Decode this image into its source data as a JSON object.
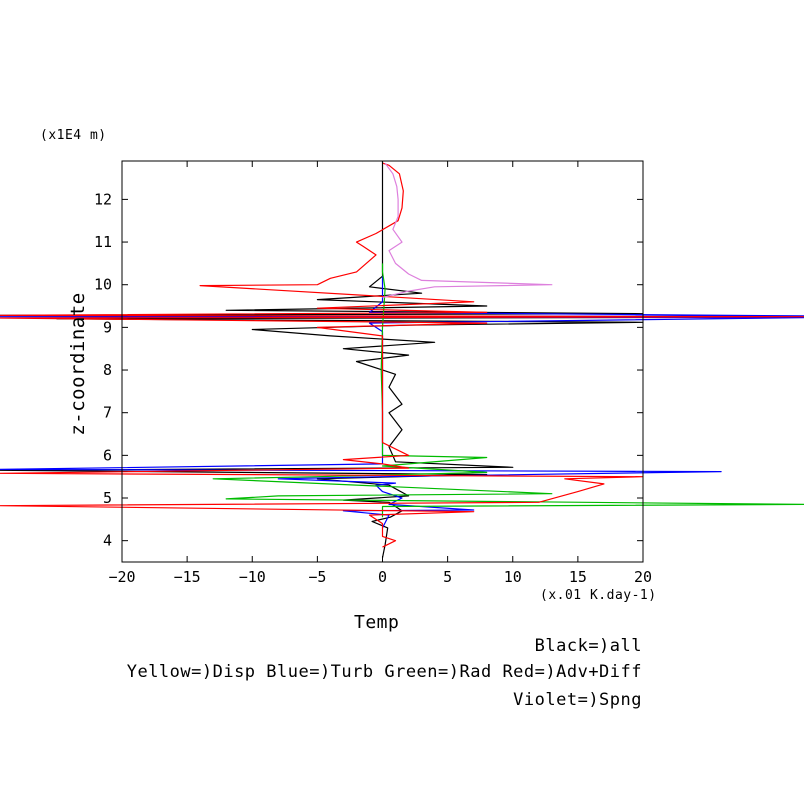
{
  "chart_data": {
    "type": "line",
    "xlabel": "Temp",
    "x_unit": "(x.01 K.day-1)",
    "ylabel": "z-coordinate",
    "y_unit": "(x1E4 m)",
    "xlim": [
      -20,
      20
    ],
    "ylim": [
      3.5,
      12.9
    ],
    "xticks": [
      -20,
      -15,
      -10,
      -5,
      0,
      5,
      10,
      15,
      20
    ],
    "yticks": [
      4,
      5,
      6,
      7,
      8,
      9,
      10,
      11,
      12
    ],
    "grid": false,
    "legend": {
      "line1": "Black=)all",
      "line2": "Yellow=)Disp Blue=)Turb Green=)Rad Red=)Adv+Diff",
      "line3": "Violet=)Spng"
    },
    "series": [
      {
        "name": "all",
        "color": "#000000",
        "points": [
          [
            0,
            3.6
          ],
          [
            0.2,
            3.9
          ],
          [
            0.4,
            4.3
          ],
          [
            -0.8,
            4.45
          ],
          [
            0.6,
            4.55
          ],
          [
            1.5,
            4.7
          ],
          [
            0.5,
            4.9
          ],
          [
            -3,
            4.95
          ],
          [
            2,
            5.05
          ],
          [
            0.5,
            5.3
          ],
          [
            -5,
            5.45
          ],
          [
            8,
            5.55
          ],
          [
            -60,
            5.65
          ],
          [
            10,
            5.72
          ],
          [
            1,
            5.85
          ],
          [
            0.5,
            6.2
          ],
          [
            1.5,
            6.6
          ],
          [
            0.5,
            7.0
          ],
          [
            1.5,
            7.2
          ],
          [
            0.5,
            7.6
          ],
          [
            1,
            7.9
          ],
          [
            -2,
            8.2
          ],
          [
            2,
            8.35
          ],
          [
            -3,
            8.5
          ],
          [
            4,
            8.65
          ],
          [
            -4,
            8.8
          ],
          [
            -10,
            8.95
          ],
          [
            2,
            9.05
          ],
          [
            20,
            9.12
          ],
          [
            -25,
            9.2
          ],
          [
            60,
            9.24
          ],
          [
            -60,
            9.28
          ],
          [
            20,
            9.32
          ],
          [
            -12,
            9.4
          ],
          [
            8,
            9.5
          ],
          [
            -5,
            9.65
          ],
          [
            3,
            9.8
          ],
          [
            -1,
            9.95
          ],
          [
            0,
            10.2
          ],
          [
            0,
            11
          ],
          [
            0,
            12.9
          ]
        ]
      },
      {
        "name": "Turb",
        "color": "#0000ff",
        "points": [
          [
            0,
            4.3
          ],
          [
            0.5,
            4.6
          ],
          [
            -3,
            4.7
          ],
          [
            7,
            4.72
          ],
          [
            0.5,
            4.85
          ],
          [
            1.5,
            5.0
          ],
          [
            0,
            5.15
          ],
          [
            -0.5,
            5.3
          ],
          [
            1,
            5.35
          ],
          [
            -8,
            5.45
          ],
          [
            0,
            5.5
          ],
          [
            26,
            5.62
          ],
          [
            -50,
            5.67
          ],
          [
            0,
            5.8
          ],
          [
            0,
            6.0
          ],
          [
            0,
            8.9
          ],
          [
            -1,
            9.1
          ],
          [
            60,
            9.23
          ],
          [
            -60,
            9.25
          ],
          [
            60,
            9.27
          ],
          [
            -1,
            9.35
          ],
          [
            0,
            9.6
          ],
          [
            0,
            10.2
          ]
        ]
      },
      {
        "name": "Rad",
        "color": "#00bb00",
        "points": [
          [
            0,
            4.55
          ],
          [
            0,
            4.8
          ],
          [
            60,
            4.85
          ],
          [
            -12,
            4.98
          ],
          [
            -8,
            5.05
          ],
          [
            13,
            5.1
          ],
          [
            -13,
            5.45
          ],
          [
            -5,
            5.5
          ],
          [
            8,
            5.6
          ],
          [
            0,
            5.75
          ],
          [
            8,
            5.95
          ],
          [
            0,
            6.0
          ],
          [
            0,
            6.5
          ],
          [
            0,
            7.0
          ],
          [
            -0.1,
            8.0
          ],
          [
            0,
            9.0
          ],
          [
            0.2,
            9.9
          ],
          [
            0,
            10.3
          ],
          [
            0,
            10.5
          ]
        ]
      },
      {
        "name": "Adv+Diff",
        "color": "#ff0000",
        "points": [
          [
            0,
            3.85
          ],
          [
            1,
            4.0
          ],
          [
            0,
            4.1
          ],
          [
            0,
            4.4
          ],
          [
            -1,
            4.6
          ],
          [
            7,
            4.68
          ],
          [
            -60,
            4.82
          ],
          [
            12,
            4.9
          ],
          [
            15,
            5.15
          ],
          [
            17,
            5.33
          ],
          [
            14,
            5.45
          ],
          [
            20,
            5.5
          ],
          [
            -40,
            5.58
          ],
          [
            2,
            5.7
          ],
          [
            0,
            5.8
          ],
          [
            -3,
            5.9
          ],
          [
            2,
            6.0
          ],
          [
            0,
            6.3
          ],
          [
            0,
            8.8
          ],
          [
            -5,
            9.0
          ],
          [
            8,
            9.1
          ],
          [
            -60,
            9.22
          ],
          [
            60,
            9.25
          ],
          [
            -60,
            9.28
          ],
          [
            8,
            9.35
          ],
          [
            -5,
            9.45
          ],
          [
            7,
            9.6
          ],
          [
            -14,
            9.98
          ],
          [
            -5,
            10.0
          ],
          [
            -4,
            10.15
          ],
          [
            -2,
            10.3
          ],
          [
            -0.5,
            10.7
          ],
          [
            -1.5,
            10.9
          ],
          [
            -2,
            11.0
          ],
          [
            -0.5,
            11.2
          ],
          [
            1.2,
            11.5
          ],
          [
            1.5,
            11.8
          ],
          [
            1.6,
            12.2
          ],
          [
            1.3,
            12.6
          ],
          [
            0.5,
            12.8
          ],
          [
            0,
            12.85
          ]
        ]
      },
      {
        "name": "Spng",
        "color": "#dd80dd",
        "points": [
          [
            0,
            9.7
          ],
          [
            2,
            9.85
          ],
          [
            4,
            9.95
          ],
          [
            13,
            10.0
          ],
          [
            3,
            10.1
          ],
          [
            2,
            10.25
          ],
          [
            1,
            10.5
          ],
          [
            0.5,
            10.8
          ],
          [
            1.5,
            11.0
          ],
          [
            0.8,
            11.3
          ],
          [
            1.2,
            11.6
          ],
          [
            1.2,
            12.0
          ],
          [
            1.1,
            12.3
          ],
          [
            0.8,
            12.6
          ],
          [
            0.2,
            12.85
          ]
        ]
      }
    ]
  }
}
